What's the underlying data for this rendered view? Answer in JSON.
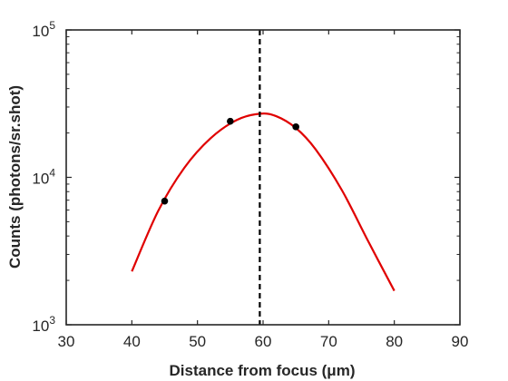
{
  "chart_data": {
    "type": "scatter",
    "title": "",
    "xlabel": "Distance from focus (μm)",
    "ylabel": "Counts (photons/sr.shot)",
    "x_scale": "linear",
    "y_scale": "log",
    "xlim": [
      30,
      90
    ],
    "ylim": [
      1000,
      100000
    ],
    "x_ticks": [
      30,
      40,
      50,
      60,
      70,
      80,
      90
    ],
    "x_tick_labels": [
      "30",
      "40",
      "50",
      "60",
      "70",
      "80",
      "90"
    ],
    "y_ticks": [
      1000,
      10000,
      100000
    ],
    "y_tick_labels": [
      {
        "base": "10",
        "exp": "3"
      },
      {
        "base": "10",
        "exp": "4"
      },
      {
        "base": "10",
        "exp": "5"
      }
    ],
    "grid": false,
    "series": [
      {
        "kind": "points",
        "color": "#000000",
        "x": [
          45,
          55,
          65
        ],
        "y": [
          6900,
          24000,
          22000
        ]
      },
      {
        "kind": "fit-curve",
        "color": "#e00000",
        "x": [
          40,
          44,
          48,
          52,
          56,
          59.5,
          62,
          65,
          68,
          72,
          76,
          80
        ],
        "y": [
          2300,
          5900,
          11600,
          18400,
          24500,
          27000,
          26000,
          21600,
          15500,
          8200,
          3700,
          1700
        ]
      }
    ],
    "reference_lines": [
      {
        "orientation": "vertical",
        "x": 59.5,
        "style": "dashed",
        "color": "#000000"
      }
    ]
  }
}
